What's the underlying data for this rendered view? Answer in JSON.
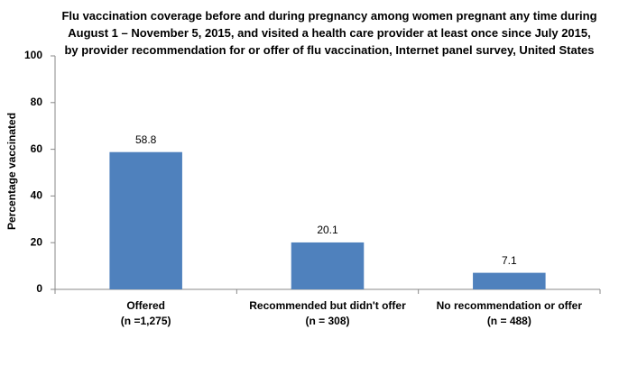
{
  "chart_data": {
    "type": "bar",
    "title": "Flu vaccination coverage before and during pregnancy among women pregnant any time during August 1 – November 5, 2015, and visited a health care provider at least once since July 2015, by provider recommendation for or offer of flu vaccination, Internet panel survey, United States",
    "y_label": "Percentage vaccinated",
    "categories": [
      "Offered\n(n =1,275)",
      "Recommended but didn't offer\n(n = 308)",
      "No recommendation or offer\n(n = 488)"
    ],
    "values": [
      58.8,
      20.1,
      7.1
    ],
    "color": "#4f81bd",
    "ylim": [
      0,
      100
    ],
    "yticks": [
      0,
      20,
      40,
      60,
      80,
      100
    ],
    "grid": false
  }
}
